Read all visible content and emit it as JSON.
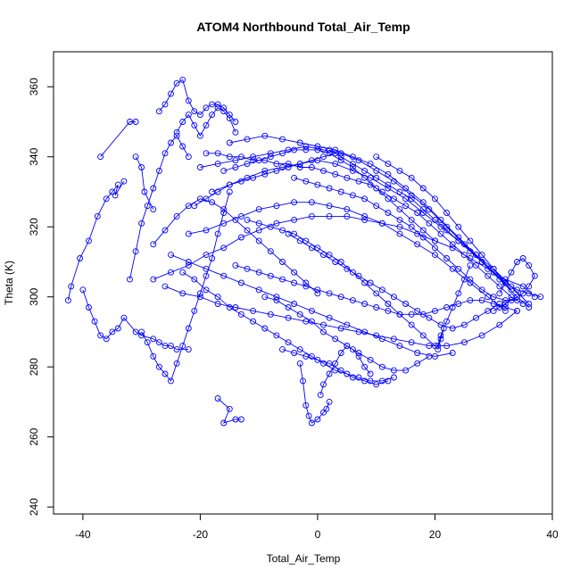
{
  "chart_data": {
    "type": "line",
    "title": "ATOM4 Northbound Total_Air_Temp",
    "xlabel": "Total_Air_Temp",
    "ylabel": "Theta (K)",
    "xlim": [
      -45,
      40
    ],
    "ylim": [
      238,
      370
    ],
    "x_ticks": [
      -40,
      -20,
      0,
      20,
      40
    ],
    "y_ticks": [
      240,
      260,
      280,
      300,
      320,
      340,
      360
    ],
    "grid": false,
    "legend": "none",
    "style": {
      "line_color": "#0000ff",
      "marker": "open-circle"
    },
    "series": [
      {
        "x": [
          -42.5,
          -42,
          -40.5,
          -39,
          -37.5,
          -36,
          -35,
          -34,
          -34.5,
          -33
        ],
        "y": [
          299,
          303,
          311,
          316,
          323,
          328,
          330,
          332,
          329,
          333
        ]
      },
      {
        "x": [
          -40,
          -39,
          -38,
          -37,
          -36,
          -35,
          -34,
          -33,
          -31,
          -30,
          -28,
          -27,
          -26,
          -25,
          -24,
          -22
        ],
        "y": [
          302,
          297,
          293,
          289,
          288,
          290,
          291,
          294,
          290,
          289,
          288,
          287,
          286,
          286,
          285,
          285
        ]
      },
      {
        "x": [
          -37,
          -32,
          -31
        ],
        "y": [
          340,
          350,
          350
        ]
      },
      {
        "x": [
          -31,
          -30,
          -29.5,
          -28
        ],
        "y": [
          340,
          337,
          330,
          325
        ]
      },
      {
        "x": [
          -32,
          -31,
          -30,
          -29,
          -28,
          -27,
          -26,
          -25,
          -24,
          -23,
          -22
        ],
        "y": [
          305,
          313,
          321,
          326,
          331,
          336,
          341,
          344,
          346,
          343,
          340
        ]
      },
      {
        "x": [
          -30,
          -29,
          -28,
          -27,
          -26,
          -25,
          -24,
          -23,
          -22,
          -21,
          -20,
          -19,
          -18,
          -17,
          -16,
          -15
        ],
        "y": [
          290,
          287,
          283,
          280,
          278,
          276,
          281,
          286,
          291,
          296,
          301,
          306,
          311,
          318,
          324,
          330
        ]
      },
      {
        "x": [
          -27,
          -26,
          -25,
          -24,
          -23,
          -22,
          -21,
          -20,
          -19,
          -18,
          -17,
          -16,
          -15,
          -14
        ],
        "y": [
          353,
          355,
          358,
          361,
          362,
          356,
          353,
          352,
          354,
          355,
          355,
          354,
          352,
          350
        ]
      },
      {
        "x": [
          -24,
          -23,
          -22,
          -21,
          -20,
          -19,
          -18,
          -17,
          -16,
          -15,
          -14
        ],
        "y": [
          347,
          350,
          352,
          349,
          346,
          349,
          352,
          354,
          353,
          351,
          347
        ]
      },
      {
        "x": [
          -28,
          -25,
          -22,
          -19,
          -16,
          -13,
          -10,
          -7,
          -4,
          -1,
          2,
          5,
          8,
          11,
          14,
          17,
          20,
          23,
          26,
          29,
          32,
          35,
          37
        ],
        "y": [
          305,
          307,
          309,
          312,
          314,
          317,
          319,
          321,
          322,
          323,
          323,
          323,
          322,
          321,
          320,
          318,
          316,
          314,
          311,
          308,
          305,
          303,
          300
        ]
      },
      {
        "x": [
          -26,
          -23,
          -20,
          -17,
          -14,
          -11,
          -8,
          -5,
          -2,
          1,
          4,
          7,
          10,
          13,
          16,
          19,
          22,
          25,
          28,
          31,
          34
        ],
        "y": [
          303,
          301,
          300,
          298,
          297,
          296,
          295,
          294,
          293,
          292,
          291,
          290,
          289,
          288,
          287,
          286,
          286,
          287,
          289,
          292,
          296
        ]
      },
      {
        "x": [
          -20,
          -17,
          -14,
          -11,
          -8,
          -5,
          -2,
          1,
          4,
          7,
          10,
          13,
          16,
          19,
          22,
          25,
          28,
          31,
          34,
          36
        ],
        "y": [
          337,
          338,
          339,
          340,
          341,
          342,
          343,
          342,
          341,
          339,
          336,
          333,
          329,
          325,
          320,
          315,
          310,
          305,
          300,
          297
        ]
      },
      {
        "x": [
          -18,
          -15,
          -12,
          -9,
          -6,
          -3,
          0,
          3,
          6,
          9,
          12,
          15,
          18,
          21,
          24,
          27,
          30,
          33,
          36
        ],
        "y": [
          330,
          332,
          334,
          336,
          337,
          338,
          339,
          338,
          336,
          334,
          331,
          328,
          324,
          320,
          316,
          312,
          308,
          303,
          298
        ]
      },
      {
        "x": [
          -22,
          -19,
          -16,
          -13,
          -10,
          -7,
          -4,
          -1,
          2,
          5,
          8,
          11,
          14,
          17,
          20,
          23,
          26,
          29,
          32
        ],
        "y": [
          318,
          319,
          321,
          323,
          325,
          326,
          327,
          327,
          326,
          325,
          323,
          321,
          318,
          315,
          312,
          308,
          304,
          300,
          296
        ]
      },
      {
        "x": [
          -25,
          -22,
          -19,
          -16,
          -13,
          -10,
          -7,
          -4,
          -1,
          2,
          5,
          8,
          11,
          14,
          17,
          20,
          23
        ],
        "y": [
          312,
          310,
          308,
          306,
          304,
          302,
          300,
          298,
          296,
          294,
          292,
          290,
          288,
          286,
          284,
          283,
          284
        ]
      },
      {
        "x": [
          -15,
          -12,
          -9,
          -6,
          -3,
          0,
          3,
          6,
          9,
          12,
          15,
          18,
          21,
          24,
          27,
          30,
          33
        ],
        "y": [
          344,
          345,
          346,
          345,
          344,
          343,
          342,
          340,
          338,
          335,
          331,
          327,
          322,
          317,
          312,
          307,
          302
        ]
      },
      {
        "x": [
          -28,
          -26,
          -24,
          -22,
          -20,
          -18,
          -16,
          -14,
          -12,
          -10,
          -8,
          -6,
          -4,
          -2,
          0
        ],
        "y": [
          315,
          319,
          323,
          326,
          328,
          327,
          325,
          322,
          319,
          316,
          313,
          310,
          307,
          304,
          301
        ]
      },
      {
        "x": [
          -23,
          -21,
          -19,
          -17,
          -15,
          -13,
          -11,
          -9,
          -7,
          -5,
          -3,
          -1,
          1,
          3,
          5,
          7,
          9,
          11,
          13
        ],
        "y": [
          307,
          305,
          302,
          300,
          297,
          295,
          293,
          291,
          289,
          287,
          285,
          283,
          281,
          279,
          278,
          277,
          276,
          276,
          277
        ]
      },
      {
        "x": [
          -17,
          -15,
          -16,
          -14,
          -13
        ],
        "y": [
          271,
          268,
          264,
          265,
          265
        ]
      },
      {
        "x": [
          -3,
          -2.5,
          -2,
          -1.5,
          -1,
          0,
          1,
          1.5,
          2
        ],
        "y": [
          281,
          276,
          269,
          266,
          264,
          265,
          267,
          268,
          270
        ]
      },
      {
        "x": [
          0.5,
          1,
          2,
          3,
          4,
          5,
          6,
          7,
          8,
          9
        ],
        "y": [
          272,
          275,
          278,
          281,
          284,
          286,
          285,
          283,
          280,
          278
        ]
      },
      {
        "x": [
          -5,
          -3,
          -1,
          1,
          3,
          5,
          7,
          9,
          11,
          13,
          15,
          17,
          19,
          21,
          23,
          25,
          27,
          29,
          31
        ],
        "y": [
          318,
          316,
          314,
          312,
          310,
          308,
          306,
          304,
          302,
          300,
          298,
          296,
          294,
          292,
          291,
          292,
          294,
          296,
          298
        ]
      },
      {
        "x": [
          -4,
          -2,
          0,
          2,
          4,
          6,
          8,
          10,
          12,
          14,
          16,
          18,
          20,
          22,
          24,
          26,
          28,
          30,
          32,
          34
        ],
        "y": [
          334,
          333,
          332,
          331,
          330,
          329,
          328,
          326,
          324,
          322,
          320,
          317,
          314,
          311,
          308,
          305,
          302,
          300,
          299,
          299
        ]
      },
      {
        "x": [
          -12,
          -10,
          -8,
          -6,
          -4,
          -2,
          0,
          2,
          4,
          6,
          8,
          10,
          12,
          14,
          16,
          18,
          20
        ],
        "y": [
          322,
          321,
          320,
          319,
          318,
          316,
          314,
          312,
          310,
          307,
          304,
          301,
          298,
          295,
          292,
          289,
          286
        ]
      },
      {
        "x": [
          2,
          4,
          6,
          8,
          10,
          12,
          14,
          16,
          18,
          20,
          22,
          24,
          26,
          28,
          30,
          32,
          34,
          36,
          38
        ],
        "y": [
          342,
          340,
          338,
          336,
          334,
          332,
          330,
          328,
          325,
          322,
          319,
          316,
          313,
          310,
          307,
          304,
          302,
          301,
          300
        ]
      },
      {
        "x": [
          20.5,
          21,
          21.5,
          20.5,
          21,
          22,
          23,
          24,
          25,
          26
        ],
        "y": [
          285,
          288,
          291,
          286,
          289,
          293,
          297,
          301,
          305,
          309
        ]
      },
      {
        "x": [
          -9,
          -7,
          -5,
          -3,
          -1,
          1,
          3,
          5,
          7,
          9,
          11,
          13,
          15,
          17,
          19
        ],
        "y": [
          300,
          299,
          297,
          295,
          293,
          290,
          288,
          286,
          284,
          282,
          280,
          279,
          279,
          281,
          283
        ]
      },
      {
        "x": [
          -6,
          -4,
          -2,
          0,
          2,
          4,
          6,
          8,
          10,
          12
        ],
        "y": [
          285,
          284,
          283,
          282,
          281,
          279,
          277,
          276,
          275,
          276
        ]
      },
      {
        "x": [
          -19,
          -17,
          -15,
          -13,
          -11,
          -9,
          -7,
          -5,
          -3,
          -1,
          1,
          3,
          5,
          7,
          9,
          11,
          13,
          15,
          17,
          19,
          21,
          23,
          25,
          27,
          29,
          31,
          33,
          35
        ],
        "y": [
          341,
          341,
          340,
          340,
          339,
          339,
          338,
          338,
          337,
          337,
          336,
          335,
          334,
          333,
          332,
          330,
          328,
          326,
          324,
          321,
          318,
          315,
          312,
          309,
          306,
          303,
          300,
          298
        ]
      },
      {
        "x": [
          -14,
          -12,
          -10,
          -8,
          -6,
          -4,
          -2,
          0,
          2,
          4,
          6,
          8,
          10,
          12,
          14,
          16,
          18,
          20,
          22,
          24,
          26,
          28,
          30,
          32,
          34
        ],
        "y": [
          309,
          308,
          307,
          306,
          305,
          304,
          303,
          302,
          301,
          300,
          299,
          298,
          297,
          296,
          295,
          295,
          295,
          296,
          297,
          298,
          299,
          299,
          298,
          297,
          296
        ]
      },
      {
        "x": [
          30,
          31,
          32,
          33,
          34,
          35,
          36,
          37,
          36,
          35,
          34,
          33,
          32,
          31
        ],
        "y": [
          296,
          297,
          298,
          299,
          300,
          301,
          303,
          306,
          309,
          311,
          310,
          307,
          304,
          301
        ]
      },
      {
        "x": [
          -21,
          -19,
          -17,
          -15,
          -13,
          -11,
          -9,
          -7,
          -5,
          -3,
          -1,
          1,
          3
        ],
        "y": [
          326,
          328,
          330,
          332,
          333,
          334,
          335,
          336,
          337,
          338,
          339,
          340,
          341
        ]
      },
      {
        "x": [
          -16,
          -14,
          -12,
          -10,
          -8,
          -6,
          -4,
          -2,
          0,
          2,
          4,
          6,
          8,
          10,
          12,
          14,
          16,
          18,
          20
        ],
        "y": [
          336,
          337,
          338,
          339,
          340,
          341,
          342,
          342,
          342,
          341,
          339,
          337,
          334,
          331,
          328,
          325,
          322,
          319,
          316
        ]
      },
      {
        "x": [
          10,
          12,
          14,
          16,
          18,
          20,
          22,
          24,
          26,
          28,
          30,
          32
        ],
        "y": [
          340,
          338,
          336,
          334,
          331,
          328,
          324,
          320,
          316,
          312,
          308,
          304
        ]
      }
    ]
  }
}
